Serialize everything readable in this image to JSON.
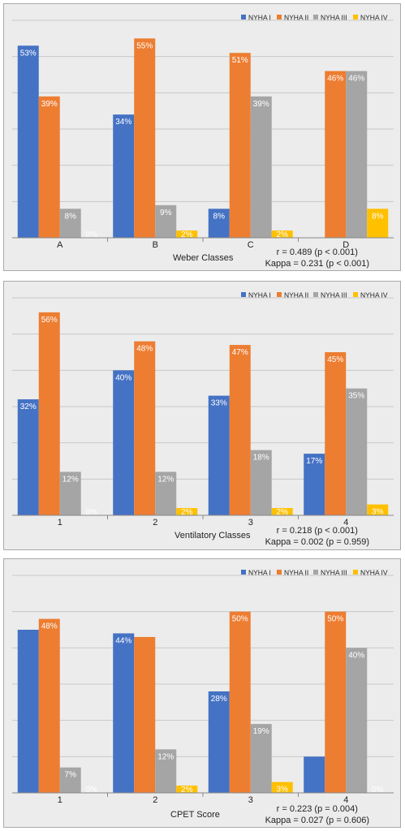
{
  "chart_data": [
    {
      "type": "bar",
      "xlabel": "Weber Classes",
      "categories": [
        "A",
        "B",
        "C",
        "D"
      ],
      "series": [
        {
          "name": "NYHA I",
          "values": [
            53,
            34,
            8,
            0
          ]
        },
        {
          "name": "NYHA II",
          "values": [
            39,
            55,
            51,
            46
          ]
        },
        {
          "name": "NYHA III",
          "values": [
            8,
            9,
            39,
            46
          ]
        },
        {
          "name": "NYHA IV",
          "values": [
            0,
            2,
            2,
            8
          ]
        }
      ],
      "data_labels": [
        [
          "53%",
          "39%",
          "8%",
          "0%"
        ],
        [
          "34%",
          "55%",
          "9%",
          "2%"
        ],
        [
          "8%",
          "51%",
          "39%",
          "2%"
        ],
        [
          "",
          "46%",
          "46%",
          "8%"
        ]
      ],
      "stats": [
        "r = 0.489 (p < 0.001)",
        "Kappa = 0.231 (p < 0.001)"
      ],
      "ylim": [
        0,
        60
      ],
      "grid": true,
      "legend": "top-right"
    },
    {
      "type": "bar",
      "xlabel": "Ventilatory Classes",
      "categories": [
        "1",
        "2",
        "3",
        "4"
      ],
      "series": [
        {
          "name": "NYHA I",
          "values": [
            32,
            40,
            33,
            17
          ]
        },
        {
          "name": "NYHA II",
          "values": [
            56,
            48,
            47,
            45
          ]
        },
        {
          "name": "NYHA III",
          "values": [
            12,
            12,
            18,
            35
          ]
        },
        {
          "name": "NYHA IV",
          "values": [
            0,
            2,
            2,
            3
          ]
        }
      ],
      "data_labels": [
        [
          "32%",
          "56%",
          "12%",
          "0%"
        ],
        [
          "40%",
          "48%",
          "12%",
          "2%"
        ],
        [
          "33%",
          "47%",
          "18%",
          "2%"
        ],
        [
          "17%",
          "45%",
          "35%",
          "3%"
        ]
      ],
      "stats": [
        "r = 0.218 (p < 0.001)",
        "Kappa = 0.002 (p = 0.959)"
      ],
      "ylim": [
        0,
        60
      ],
      "grid": true,
      "legend": "top-right"
    },
    {
      "type": "bar",
      "xlabel": "CPET Score",
      "categories": [
        "1",
        "2",
        "3",
        "4"
      ],
      "series": [
        {
          "name": "NYHA I",
          "values": [
            45,
            44,
            28,
            10
          ]
        },
        {
          "name": "NYHA II",
          "values": [
            48,
            43,
            50,
            50
          ]
        },
        {
          "name": "NYHA III",
          "values": [
            7,
            12,
            19,
            40
          ]
        },
        {
          "name": "NYHA IV",
          "values": [
            0,
            2,
            3,
            0
          ]
        }
      ],
      "data_labels": [
        [
          "",
          "48%",
          "7%",
          "0%"
        ],
        [
          "44%",
          "",
          "12%",
          "2%"
        ],
        [
          "28%",
          "50%",
          "19%",
          "3%"
        ],
        [
          "",
          "50%",
          "40%",
          "0%"
        ]
      ],
      "stats": [
        "r = 0.223 (p = 0.004)",
        "Kappa = 0.027 (p = 0.606)"
      ],
      "ylim": [
        0,
        60
      ],
      "grid": true,
      "legend": "top-right"
    }
  ],
  "colors": [
    "#4472c4",
    "#ed7d31",
    "#a5a5a5",
    "#ffc000"
  ]
}
